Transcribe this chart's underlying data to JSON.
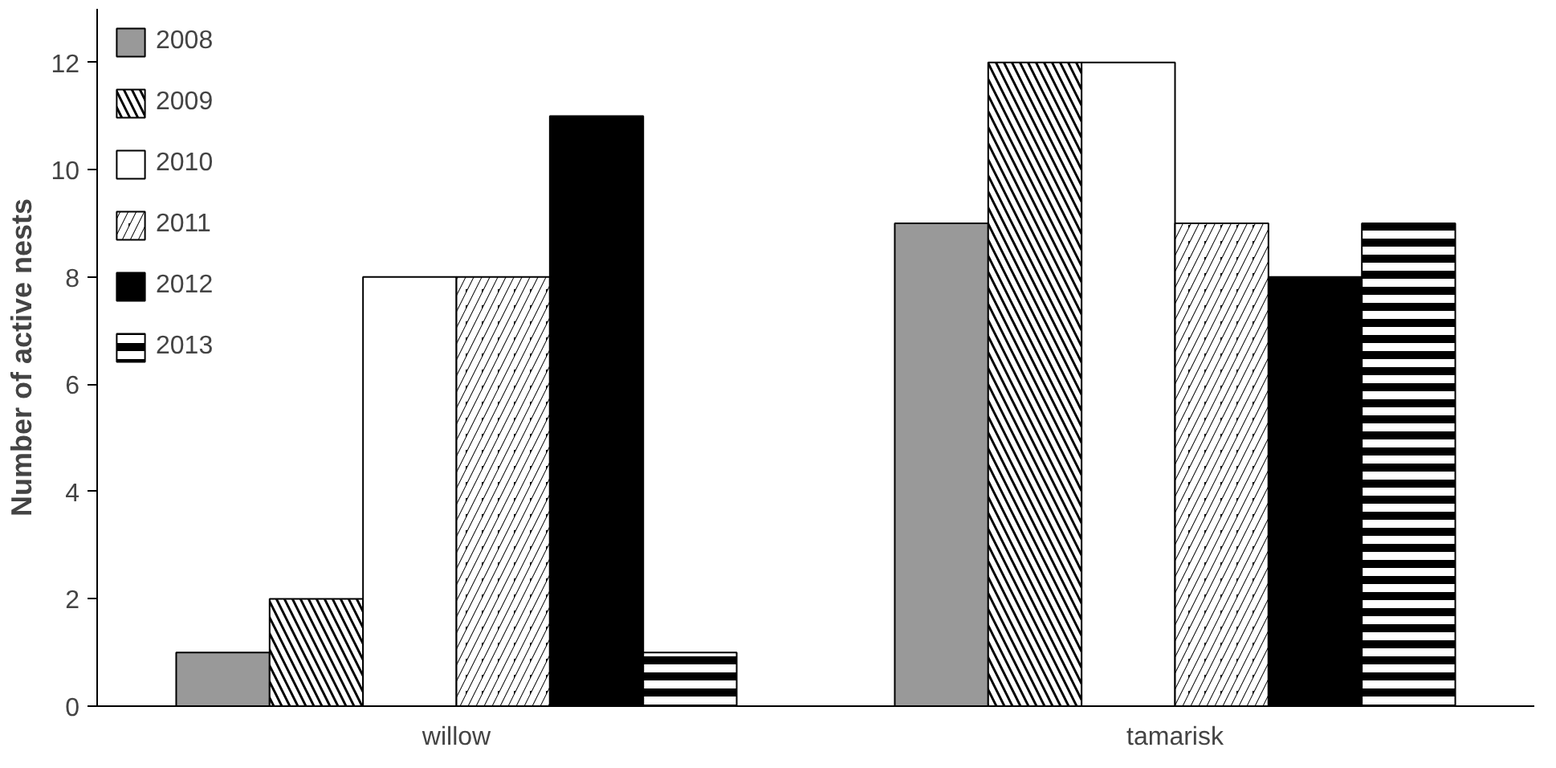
{
  "chart_data": {
    "type": "bar",
    "ylabel": "Number of active nests",
    "categories": [
      "willow",
      "tamarisk"
    ],
    "ylim": [
      0,
      13
    ],
    "yticks": [
      0,
      2,
      4,
      6,
      8,
      10,
      12
    ],
    "grid": false,
    "legend": "top left",
    "series": [
      {
        "name": "2008",
        "color": "#999999",
        "values": [
          1,
          9
        ]
      },
      {
        "name": "2009",
        "color": "#000000",
        "values": [
          2,
          12
        ]
      },
      {
        "name": "2010",
        "color": "#ffffff",
        "values": [
          8,
          12
        ]
      },
      {
        "name": "2011",
        "color": "#000000",
        "values": [
          8,
          9
        ]
      },
      {
        "name": "2012",
        "color": "#000000",
        "values": [
          11,
          8
        ]
      },
      {
        "name": "2013",
        "color": "#000000",
        "values": [
          1,
          9
        ]
      }
    ]
  }
}
